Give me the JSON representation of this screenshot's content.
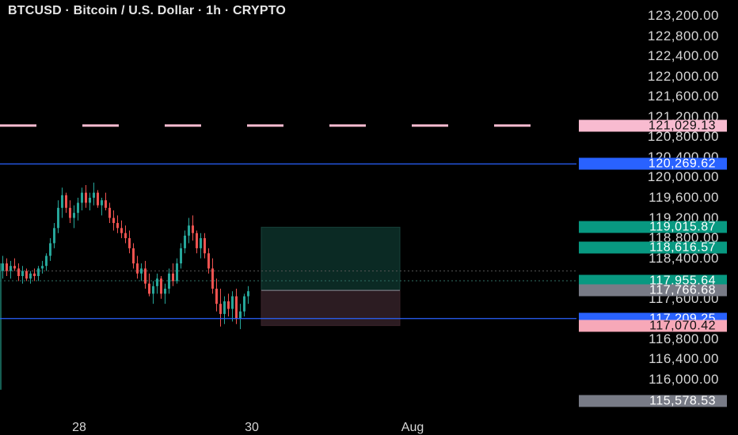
{
  "header": {
    "title": "BTCUSD · Bitcoin / U.S. Dollar · 1h · CRYPTO"
  },
  "y_axis": {
    "ticks": [
      "123,200.00",
      "122,800.00",
      "122,400.00",
      "122,000.00",
      "121,600.00",
      "121,200.00",
      "120,800.00",
      "120,400.00",
      "120,000.00",
      "119,600.00",
      "119,200.00",
      "118,800.00",
      "118,400.00",
      "117,600.00",
      "116,800.00",
      "116,400.00",
      "116,000.00"
    ]
  },
  "x_axis": {
    "labels": [
      "28",
      "30",
      "Aug"
    ]
  },
  "price_badges": [
    {
      "label": "121,029.13",
      "bg": "#f8bbd0",
      "fg": "#111111"
    },
    {
      "label": "120,269.62",
      "bg": "#2962ff",
      "fg": "#ffffff"
    },
    {
      "label": "119,015.87",
      "bg": "#089981",
      "fg": "#ffffff"
    },
    {
      "label": "118,616.57",
      "bg": "#089981",
      "fg": "#ffffff"
    },
    {
      "label": "117,955.64",
      "bg": "#089981",
      "fg": "#ffffff"
    },
    {
      "label": "117,766.68",
      "bg": "#787b86",
      "fg": "#ffffff"
    },
    {
      "label": "117,209.25",
      "bg": "#2962ff",
      "fg": "#ffffff"
    },
    {
      "label": "117,070.42",
      "bg": "#f7a8b8",
      "fg": "#111111"
    },
    {
      "label": "115,578.53",
      "bg": "#787b86",
      "fg": "#ffffff"
    }
  ],
  "horizontal_lines": [
    {
      "name": "pink-dashed-level-line",
      "price": 121029.13,
      "color": "#f8bbd0",
      "style": "dashed"
    },
    {
      "name": "upper-blue-level-line",
      "price": 120269.62,
      "color": "#2962ff",
      "style": "solid"
    },
    {
      "name": "lower-blue-level-line",
      "price": 117209.25,
      "color": "#2962ff",
      "style": "solid"
    }
  ],
  "position_tool": {
    "entry": 117766.68,
    "target": 119015.87,
    "stop": 117070.42,
    "profit_color": "#0b2a24",
    "loss_color": "#2c1c22"
  },
  "colors": {
    "up": "#26a69a",
    "down": "#ef5350",
    "background": "#000000"
  },
  "chart_data": {
    "type": "candlestick",
    "interval": "1h",
    "y_range": [
      115450,
      123300
    ],
    "candles": [
      [
        118150,
        118450,
        118000,
        118300
      ],
      [
        118300,
        118400,
        118050,
        118150
      ],
      [
        118150,
        118350,
        118000,
        118250
      ],
      [
        118250,
        118400,
        118150,
        118200
      ],
      [
        118200,
        118300,
        117950,
        118050
      ],
      [
        118050,
        118250,
        117900,
        118150
      ],
      [
        118150,
        118200,
        117950,
        118000
      ],
      [
        118000,
        118150,
        117900,
        118100
      ],
      [
        118100,
        118200,
        117950,
        118050
      ],
      [
        118050,
        118250,
        117950,
        118200
      ],
      [
        118200,
        118350,
        118100,
        118250
      ],
      [
        118250,
        118500,
        118150,
        118450
      ],
      [
        118450,
        118800,
        118350,
        118700
      ],
      [
        118700,
        119100,
        118600,
        119000
      ],
      [
        119000,
        119550,
        118900,
        119400
      ],
      [
        119400,
        119800,
        119200,
        119650
      ],
      [
        119650,
        119700,
        119300,
        119400
      ],
      [
        119400,
        119550,
        119100,
        119200
      ],
      [
        119200,
        119450,
        119000,
        119300
      ],
      [
        119300,
        119600,
        119150,
        119500
      ],
      [
        119500,
        119800,
        119350,
        119700
      ],
      [
        119700,
        119850,
        119400,
        119500
      ],
      [
        119500,
        119700,
        119350,
        119600
      ],
      [
        119600,
        119900,
        119450,
        119700
      ],
      [
        119700,
        119750,
        119400,
        119450
      ],
      [
        119450,
        119600,
        119250,
        119550
      ],
      [
        119550,
        119700,
        119350,
        119400
      ],
      [
        119400,
        119500,
        119100,
        119200
      ],
      [
        119200,
        119350,
        118950,
        119100
      ],
      [
        119100,
        119250,
        118900,
        119000
      ],
      [
        119000,
        119150,
        118800,
        118900
      ],
      [
        118900,
        119050,
        118700,
        118800
      ],
      [
        118800,
        118950,
        118500,
        118600
      ],
      [
        118600,
        118700,
        118200,
        118300
      ],
      [
        118300,
        118450,
        118000,
        118100
      ],
      [
        118100,
        118300,
        117950,
        118200
      ],
      [
        118200,
        118350,
        117800,
        117900
      ],
      [
        117900,
        118100,
        117650,
        117700
      ],
      [
        117700,
        117950,
        117500,
        117850
      ],
      [
        117850,
        118100,
        117700,
        118000
      ],
      [
        118000,
        118050,
        117600,
        117700
      ],
      [
        117700,
        117900,
        117500,
        117800
      ],
      [
        117800,
        118200,
        117700,
        118100
      ],
      [
        118100,
        118300,
        117850,
        117950
      ],
      [
        117950,
        118400,
        117900,
        118300
      ],
      [
        118300,
        118700,
        118200,
        118600
      ],
      [
        118600,
        118950,
        118500,
        118850
      ],
      [
        118850,
        119200,
        118700,
        119050
      ],
      [
        119050,
        119250,
        118750,
        118900
      ],
      [
        118900,
        118950,
        118500,
        118600
      ],
      [
        118600,
        118900,
        118400,
        118800
      ],
      [
        118800,
        118900,
        118400,
        118500
      ],
      [
        118500,
        118600,
        118100,
        118200
      ],
      [
        118200,
        118400,
        117700,
        117800
      ],
      [
        117800,
        118000,
        117350,
        117500
      ],
      [
        117500,
        117800,
        117050,
        117300
      ],
      [
        117300,
        117650,
        117100,
        117550
      ],
      [
        117550,
        117700,
        117250,
        117400
      ],
      [
        117400,
        117750,
        117150,
        117650
      ],
      [
        117650,
        117800,
        117100,
        117200
      ],
      [
        117200,
        117500,
        117000,
        117350
      ],
      [
        117350,
        117700,
        117250,
        117650
      ],
      [
        117650,
        117850,
        117500,
        117750
      ]
    ]
  }
}
